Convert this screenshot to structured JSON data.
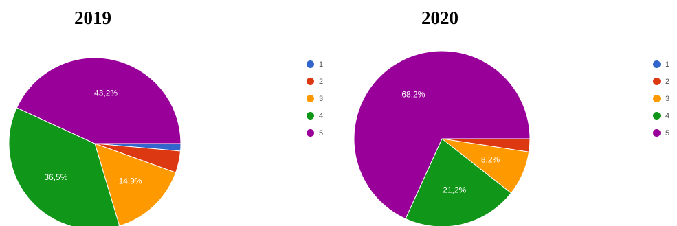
{
  "chart_data": [
    {
      "type": "pie",
      "title": "2019",
      "categories": [
        "1",
        "2",
        "3",
        "4",
        "5"
      ],
      "values": [
        1.4,
        4.1,
        14.9,
        36.5,
        43.2
      ],
      "labels": [
        "",
        "",
        "14,9%",
        "36,5%",
        "43,2%"
      ],
      "colors": [
        "#3366cc",
        "#dc3912",
        "#ff9900",
        "#109618",
        "#990099"
      ],
      "legend_position": "right"
    },
    {
      "type": "pie",
      "title": "2020",
      "categories": [
        "1",
        "2",
        "3",
        "4",
        "5"
      ],
      "values": [
        0,
        2.4,
        8.2,
        21.2,
        68.2
      ],
      "labels": [
        "",
        "",
        "8,2%",
        "21,2%",
        "68,2%"
      ],
      "colors": [
        "#3366cc",
        "#dc3912",
        "#ff9900",
        "#109618",
        "#990099"
      ],
      "legend_position": "right"
    }
  ]
}
